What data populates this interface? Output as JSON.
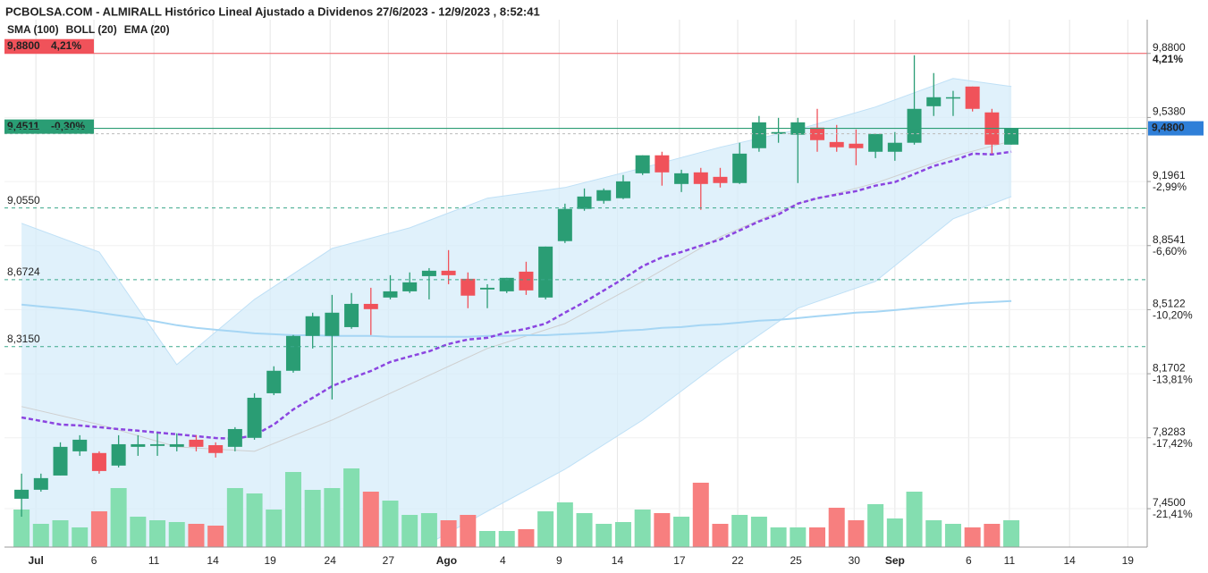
{
  "chart_data": {
    "type": "candlestick",
    "title": "PCBOLSA.COM - ALMIRALL Histórico Lineal Ajustado a Dividenos 27/6/2023 - 12/9/2023 , 8:52:41",
    "open": [
      7.503,
      7.551,
      7.627,
      7.756,
      7.747,
      7.68,
      7.78,
      7.785,
      7.78,
      7.818,
      7.789,
      7.78,
      7.828,
      8.066,
      8.186,
      8.372,
      8.372,
      8.419,
      8.543,
      8.577,
      8.61,
      8.691,
      8.72,
      8.677,
      8.62,
      8.61,
      8.715,
      8.577,
      8.878,
      9.05,
      9.093,
      9.107,
      9.24,
      9.336,
      9.183,
      9.245,
      9.221,
      9.188,
      9.374,
      9.45,
      9.446,
      9.484,
      9.407,
      9.398,
      9.355,
      9.355,
      9.403,
      9.598,
      9.641,
      9.703,
      9.565,
      9.393
    ],
    "high": [
      7.637,
      7.637,
      7.804,
      7.842,
      7.756,
      7.842,
      7.842,
      7.852,
      7.852,
      7.842,
      7.804,
      7.885,
      8.066,
      8.21,
      8.377,
      8.496,
      8.591,
      8.601,
      8.629,
      8.696,
      8.711,
      8.734,
      8.83,
      8.711,
      8.648,
      8.682,
      8.768,
      8.849,
      9.078,
      9.159,
      9.159,
      9.231,
      9.336,
      9.355,
      9.259,
      9.269,
      9.269,
      9.403,
      9.546,
      9.536,
      9.536,
      9.584,
      9.498,
      9.474,
      9.45,
      9.46,
      9.87,
      9.775,
      9.68,
      9.703,
      9.584,
      9.48
    ],
    "low": [
      7.407,
      7.541,
      7.627,
      7.732,
      7.637,
      7.67,
      7.732,
      7.732,
      7.756,
      7.756,
      7.723,
      7.756,
      7.818,
      8.056,
      8.176,
      8.305,
      8.033,
      8.41,
      8.377,
      8.567,
      8.601,
      8.567,
      8.648,
      8.52,
      8.52,
      8.601,
      8.591,
      8.567,
      8.868,
      9.04,
      9.078,
      9.102,
      9.231,
      9.174,
      9.14,
      9.045,
      9.164,
      9.183,
      9.355,
      9.403,
      9.188,
      9.355,
      9.355,
      9.283,
      9.321,
      9.307,
      9.393,
      9.546,
      9.546,
      9.57,
      9.345,
      9.393
    ],
    "close": [
      7.551,
      7.613,
      7.78,
      7.818,
      7.651,
      7.794,
      7.794,
      7.794,
      7.794,
      7.78,
      7.747,
      7.875,
      8.042,
      8.186,
      8.372,
      8.477,
      8.496,
      8.543,
      8.515,
      8.61,
      8.658,
      8.72,
      8.696,
      8.587,
      8.629,
      8.682,
      8.615,
      8.849,
      9.05,
      9.116,
      9.15,
      9.197,
      9.336,
      9.245,
      9.24,
      9.183,
      9.188,
      9.345,
      9.512,
      9.46,
      9.512,
      9.417,
      9.379,
      9.374,
      9.45,
      9.403,
      9.584,
      9.646,
      9.646,
      9.584,
      9.393,
      9.48
    ],
    "up_color": "#2a9d74",
    "down_color": "#f0525a",
    "volume": [
      42,
      26,
      30,
      22,
      40,
      66,
      34,
      30,
      28,
      26,
      24,
      66,
      60,
      42,
      84,
      64,
      66,
      88,
      62,
      52,
      36,
      38,
      30,
      36,
      18,
      18,
      20,
      40,
      50,
      38,
      26,
      28,
      42,
      38,
      34,
      72,
      26,
      36,
      34,
      22,
      22,
      22,
      44,
      30,
      48,
      32,
      62,
      30,
      26,
      22,
      26,
      30
    ],
    "volume_lim": [
      0,
      100
    ],
    "volume_up_color": "#84deb0",
    "volume_down_color": "#f77f7f",
    "xlim": [
      -0.88,
      58
    ],
    "xticks": [
      {
        "value": 0.74,
        "label": "Jul"
      },
      {
        "value": 3.73,
        "label": "6"
      },
      {
        "value": 6.82,
        "label": "11"
      },
      {
        "value": 9.86,
        "label": "14"
      },
      {
        "value": 12.81,
        "label": "19"
      },
      {
        "value": 15.9,
        "label": "24"
      },
      {
        "value": 18.9,
        "label": "27"
      },
      {
        "value": 21.9,
        "label": "Ago"
      },
      {
        "value": 24.8,
        "label": "4"
      },
      {
        "value": 27.7,
        "label": "9"
      },
      {
        "value": 30.7,
        "label": "14"
      },
      {
        "value": 33.9,
        "label": "17"
      },
      {
        "value": 36.9,
        "label": "22"
      },
      {
        "value": 39.9,
        "label": "25"
      },
      {
        "value": 42.9,
        "label": "30"
      },
      {
        "value": 45.0,
        "label": "Sep"
      },
      {
        "value": 48.8,
        "label": "6"
      },
      {
        "value": 50.9,
        "label": "11"
      },
      {
        "value": 54.0,
        "label": "14"
      },
      {
        "value": 57.0,
        "label": "19"
      }
    ],
    "ylim": [
      7.245,
      10.06
    ],
    "yticks": [
      {
        "value": 9.88,
        "label": "9,8800"
      },
      {
        "value": 9.538,
        "label": "9,5380"
      },
      {
        "value": 9.1961,
        "label": "9,1961"
      },
      {
        "value": 8.8541,
        "label": "8,8541"
      },
      {
        "value": 8.5122,
        "label": "8,5122"
      },
      {
        "value": 8.1702,
        "label": "8,1702"
      },
      {
        "value": 7.8283,
        "label": "7,8283"
      },
      {
        "value": 7.45,
        "label": "7,4500"
      }
    ],
    "ytick_changes": [
      "4,21%",
      null,
      "-2,99%",
      "-6,60%",
      "-10,20%",
      "-13,81%",
      "-17,42%",
      "-21,41%"
    ],
    "grid": true,
    "studies": [
      {
        "name": "SMA (100)",
        "kind": "line",
        "color": "#a6d6f4",
        "values": [
          8.539,
          8.529,
          8.52,
          8.51,
          8.496,
          8.481,
          8.467,
          8.448,
          8.429,
          8.415,
          8.405,
          8.396,
          8.386,
          8.381,
          8.376,
          8.376,
          8.372,
          8.372,
          8.372,
          8.367,
          8.367,
          8.367,
          8.367,
          8.367,
          8.372,
          8.372,
          8.376,
          8.376,
          8.381,
          8.386,
          8.391,
          8.4,
          8.405,
          8.415,
          8.419,
          8.429,
          8.434,
          8.443,
          8.453,
          8.458,
          8.467,
          8.477,
          8.486,
          8.496,
          8.501,
          8.51,
          8.52,
          8.529,
          8.539,
          8.548,
          8.553,
          8.558
        ]
      },
      {
        "name": "BOLL (20)",
        "kind": "band",
        "color": "#cfcfcf",
        "fill": "#d6ecfa",
        "edge": "#bfe0f6",
        "x": [
          0,
          4,
          8,
          12,
          16,
          20,
          24,
          28,
          32,
          36,
          40,
          44,
          48,
          51
        ],
        "upper": [
          8.973,
          8.82,
          8.219,
          8.567,
          8.839,
          8.949,
          9.107,
          9.164,
          9.269,
          9.379,
          9.474,
          9.594,
          9.746,
          9.703
        ],
        "middle": [
          7.995,
          7.899,
          7.78,
          7.756,
          7.923,
          8.114,
          8.305,
          8.438,
          8.663,
          8.901,
          9.078,
          9.188,
          9.331,
          9.412
        ],
        "lower": [
          7.064,
          7.016,
          7.016,
          7.016,
          7.064,
          7.207,
          7.436,
          7.66,
          7.923,
          8.233,
          8.52,
          8.663,
          8.997,
          9.116
        ]
      },
      {
        "name": "EMA (20)",
        "kind": "line",
        "dashed": true,
        "color": "#8b45e0",
        "values": [
          7.937,
          7.918,
          7.899,
          7.894,
          7.885,
          7.875,
          7.866,
          7.856,
          7.847,
          7.837,
          7.827,
          7.823,
          7.842,
          7.899,
          7.98,
          8.042,
          8.104,
          8.147,
          8.185,
          8.233,
          8.262,
          8.29,
          8.329,
          8.353,
          8.362,
          8.391,
          8.41,
          8.438,
          8.496,
          8.553,
          8.615,
          8.677,
          8.744,
          8.792,
          8.82,
          8.854,
          8.887,
          8.935,
          8.983,
          9.021,
          9.078,
          9.107,
          9.126,
          9.145,
          9.174,
          9.193,
          9.236,
          9.279,
          9.307,
          9.345,
          9.341,
          9.355
        ]
      }
    ],
    "levels": [
      {
        "value": 9.88,
        "label": "9,8800",
        "change": "4,21%",
        "color": "#f0525a",
        "style": "box"
      },
      {
        "value": 9.4511,
        "label": "9,4511",
        "change": "-0,30%",
        "color": "#2a9d74",
        "style": "box"
      },
      {
        "value": 9.055,
        "label": "9,0550",
        "color": "#3aa88a",
        "style": "dashed"
      },
      {
        "value": 8.6724,
        "label": "8,6724",
        "color": "#3aa88a",
        "style": "dashed"
      },
      {
        "value": 8.315,
        "label": "8,3150",
        "color": "#3aa88a",
        "style": "dashed"
      }
    ],
    "last_price": {
      "value": 9.48,
      "label": "9,4800",
      "color": "#2a9d74",
      "box_color": "#2f7fd8"
    }
  }
}
